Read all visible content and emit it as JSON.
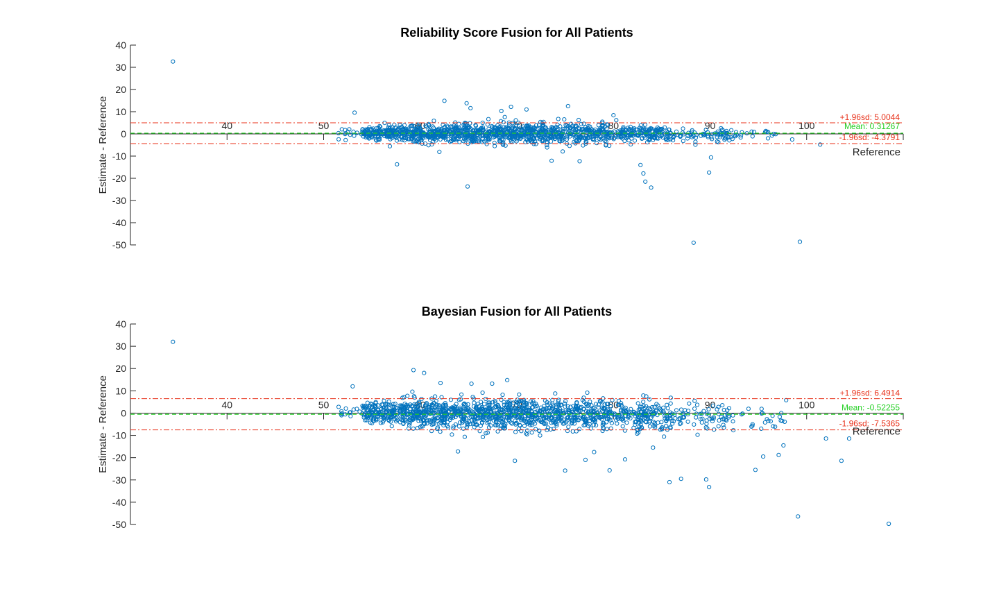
{
  "colors": {
    "points": "#0072BD",
    "limits": "#E8311A",
    "mean": "#25D025",
    "axis": "#262626"
  },
  "chart_data": [
    {
      "type": "scatter",
      "title": "Reliability Score Fusion for All Patients",
      "xlabel": "Reference",
      "ylabel": "Estimate - Reference",
      "xlim": [
        30,
        110
      ],
      "ylim": [
        -50,
        40
      ],
      "xticks": [
        40,
        50,
        60,
        70,
        80,
        90,
        100
      ],
      "yticks": [
        40,
        30,
        20,
        10,
        0,
        -10,
        -20,
        -30,
        -40,
        -50
      ],
      "mean": 0.31267,
      "upper": 5.0044,
      "lower": -4.3791,
      "mean_label": "Mean: 0.31267",
      "upper_label": "+1.96sd: 5.0044",
      "lower_label": "-1.96sd: -4.3791",
      "outliers": [
        [
          34.4,
          32.6
        ],
        [
          53.2,
          9.6
        ],
        [
          62.5,
          14.9
        ],
        [
          64.8,
          13.8
        ],
        [
          65.2,
          11.6
        ],
        [
          68.4,
          10.3
        ],
        [
          69.4,
          12.2
        ],
        [
          71.0,
          11.0
        ],
        [
          75.3,
          12.5
        ],
        [
          80.0,
          8.4
        ],
        [
          57.6,
          -13.7
        ],
        [
          64.9,
          -23.7
        ],
        [
          73.6,
          -12.1
        ],
        [
          76.5,
          -12.3
        ],
        [
          82.8,
          -14.0
        ],
        [
          83.1,
          -17.8
        ],
        [
          83.3,
          -21.5
        ],
        [
          83.9,
          -24.2
        ],
        [
          88.3,
          -49.0
        ],
        [
          89.9,
          -17.4
        ],
        [
          90.1,
          -10.6
        ],
        [
          99.3,
          -48.6
        ],
        [
          101.4,
          -4.8
        ],
        [
          98.5,
          -2.5
        ],
        [
          96.0,
          -2.0
        ]
      ],
      "cloud": [
        {
          "x0": 51.5,
          "x1": 54.0,
          "n": 14,
          "sd": 1.1,
          "mu": 0.6
        },
        {
          "x0": 54.0,
          "x1": 58.0,
          "n": 160,
          "sd": 1.5,
          "mu": 0.5
        },
        {
          "x0": 58.0,
          "x1": 64.0,
          "n": 280,
          "sd": 2.0,
          "mu": 0.3
        },
        {
          "x0": 64.0,
          "x1": 72.0,
          "n": 380,
          "sd": 2.3,
          "mu": 0.3
        },
        {
          "x0": 72.0,
          "x1": 80.0,
          "n": 300,
          "sd": 2.1,
          "mu": 0.2
        },
        {
          "x0": 80.0,
          "x1": 86.0,
          "n": 170,
          "sd": 1.8,
          "mu": 0.0
        },
        {
          "x0": 86.0,
          "x1": 92.0,
          "n": 70,
          "sd": 1.5,
          "mu": -0.2
        },
        {
          "x0": 92.0,
          "x1": 97.0,
          "n": 22,
          "sd": 1.2,
          "mu": -0.3
        }
      ]
    },
    {
      "type": "scatter",
      "title": "Bayesian Fusion for All Patients",
      "xlabel": "Reference",
      "ylabel": "Estimate - Reference",
      "xlim": [
        30,
        110
      ],
      "ylim": [
        -50,
        40
      ],
      "xticks": [
        40,
        50,
        60,
        70,
        80,
        90,
        100
      ],
      "yticks": [
        40,
        30,
        20,
        10,
        0,
        -10,
        -20,
        -30,
        -40,
        -50
      ],
      "mean": -0.52255,
      "upper": 6.4914,
      "lower": -7.5365,
      "mean_label": "Mean: -0.52255",
      "upper_label": "+1.96sd: 6.4914",
      "lower_label": "-1.96sd: -7.5365",
      "outliers": [
        [
          34.4,
          32.0
        ],
        [
          59.3,
          19.3
        ],
        [
          60.4,
          18.0
        ],
        [
          69.0,
          14.8
        ],
        [
          65.3,
          13.2
        ],
        [
          53.0,
          12.0
        ],
        [
          62.1,
          13.5
        ],
        [
          63.9,
          -17.2
        ],
        [
          69.8,
          -21.4
        ],
        [
          75.0,
          -25.8
        ],
        [
          77.1,
          -21.0
        ],
        [
          79.6,
          -25.7
        ],
        [
          81.2,
          -20.8
        ],
        [
          85.8,
          -31.0
        ],
        [
          87.0,
          -29.5
        ],
        [
          89.6,
          -29.8
        ],
        [
          89.9,
          -33.2
        ],
        [
          94.7,
          -25.5
        ],
        [
          95.5,
          -19.5
        ],
        [
          97.1,
          -18.8
        ],
        [
          97.6,
          -14.5
        ],
        [
          99.1,
          -46.4
        ],
        [
          102.0,
          -11.4
        ],
        [
          103.6,
          -21.4
        ],
        [
          104.4,
          -11.4
        ],
        [
          108.5,
          -49.7
        ],
        [
          78.0,
          -17.5
        ],
        [
          84.1,
          -15.5
        ]
      ],
      "cloud": [
        {
          "x0": 51.5,
          "x1": 54.0,
          "n": 14,
          "sd": 1.4,
          "mu": 0.8
        },
        {
          "x0": 54.0,
          "x1": 58.0,
          "n": 160,
          "sd": 2.3,
          "mu": 0.3
        },
        {
          "x0": 58.0,
          "x1": 64.0,
          "n": 280,
          "sd": 3.0,
          "mu": 0.0
        },
        {
          "x0": 64.0,
          "x1": 72.0,
          "n": 380,
          "sd": 3.6,
          "mu": -0.3
        },
        {
          "x0": 72.0,
          "x1": 80.0,
          "n": 300,
          "sd": 3.5,
          "mu": -0.8
        },
        {
          "x0": 80.0,
          "x1": 86.0,
          "n": 170,
          "sd": 3.2,
          "mu": -1.3
        },
        {
          "x0": 86.0,
          "x1": 92.0,
          "n": 70,
          "sd": 3.0,
          "mu": -1.8
        },
        {
          "x0": 92.0,
          "x1": 98.0,
          "n": 26,
          "sd": 3.0,
          "mu": -2.5
        }
      ]
    }
  ]
}
